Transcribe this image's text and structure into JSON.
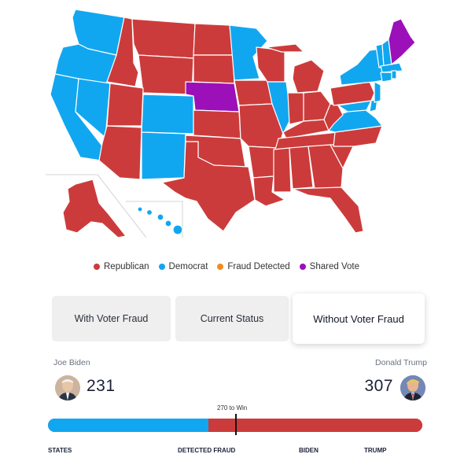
{
  "colors": {
    "republican": "#cc3b3b",
    "democrat": "#11a7f0",
    "fraud": "#f28c1c",
    "shared": "#9b10b8"
  },
  "map": {
    "states_republican": [
      "ID",
      "MT",
      "WY",
      "UT",
      "AZ",
      "ND",
      "SD",
      "KS",
      "OK",
      "TX",
      "MO",
      "AR",
      "LA",
      "IA",
      "WI",
      "MI",
      "IN",
      "OH",
      "KY",
      "TN",
      "MS",
      "AL",
      "GA",
      "FL",
      "SC",
      "NC",
      "WV",
      "PA",
      "AK"
    ],
    "states_democrat": [
      "WA",
      "OR",
      "CA",
      "NV",
      "CO",
      "NM",
      "MN",
      "IL",
      "VA",
      "NY",
      "VT",
      "NH",
      "MA",
      "CT",
      "RI",
      "NJ",
      "DE",
      "MD",
      "HI"
    ],
    "states_shared": [
      "NE",
      "ME"
    ]
  },
  "legend": [
    {
      "label": "Republican",
      "color": "#cc3b3b"
    },
    {
      "label": "Democrat",
      "color": "#11a7f0"
    },
    {
      "label": "Fraud Detected",
      "color": "#f28c1c"
    },
    {
      "label": "Shared Vote",
      "color": "#9b10b8"
    }
  ],
  "tabs": [
    {
      "label": "With Voter Fraud",
      "active": false
    },
    {
      "label": "Current Status",
      "active": false
    },
    {
      "label": "Without Voter Fraud",
      "active": true
    }
  ],
  "candidates": {
    "left": {
      "name": "Joe Biden",
      "votes": "231"
    },
    "right": {
      "name": "Donald Trump",
      "votes": "307"
    }
  },
  "progress": {
    "target_label": "270 to Win",
    "democrat_share": 0.429,
    "marker_share": 0.502
  },
  "bottom_labels": [
    "STATES",
    "DETECTED FRAUD",
    "BIDEN",
    "TRUMP"
  ]
}
